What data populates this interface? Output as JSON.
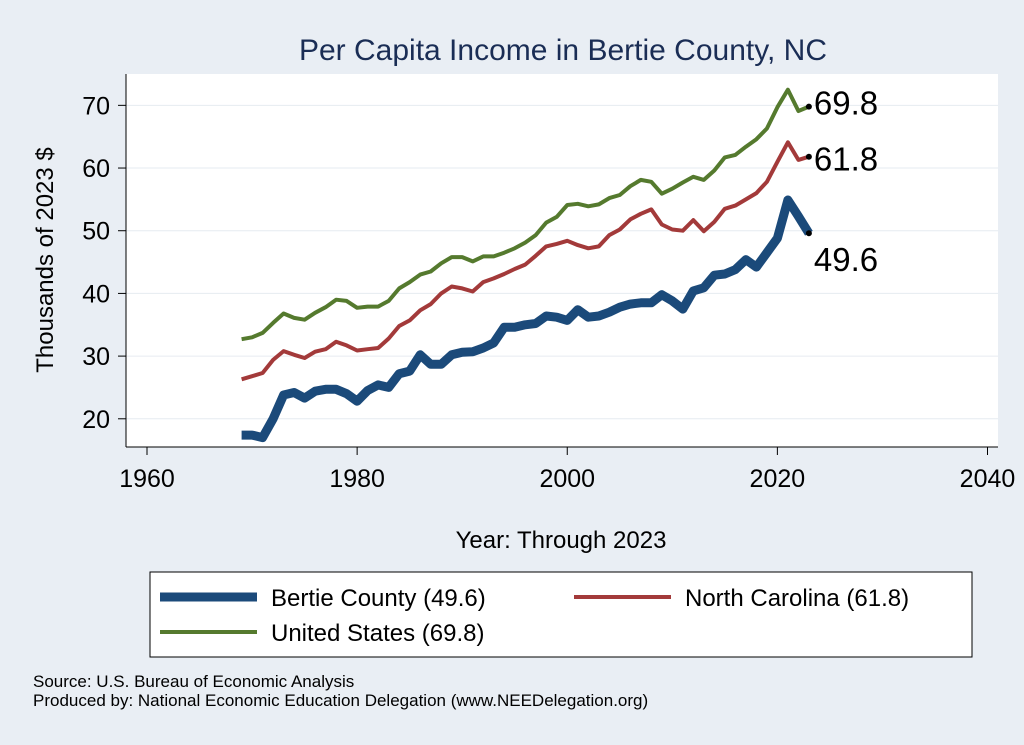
{
  "chart_data": {
    "type": "line",
    "title": "Per Capita Income in Bertie County, NC",
    "xlabel": "Year: Through 2023",
    "ylabel": "Thousands of 2023 $",
    "xlim": [
      1958,
      2041
    ],
    "ylim": [
      15.5,
      75
    ],
    "xticks": [
      1960,
      1980,
      2000,
      2020,
      2040
    ],
    "yticks": [
      20,
      30,
      40,
      50,
      60,
      70
    ],
    "grid": true,
    "legend_position": "bottom",
    "years": [
      1969,
      1970,
      1971,
      1972,
      1973,
      1974,
      1975,
      1976,
      1977,
      1978,
      1979,
      1980,
      1981,
      1982,
      1983,
      1984,
      1985,
      1986,
      1987,
      1988,
      1989,
      1990,
      1991,
      1992,
      1993,
      1994,
      1995,
      1996,
      1997,
      1998,
      1999,
      2000,
      2001,
      2002,
      2003,
      2004,
      2005,
      2006,
      2007,
      2008,
      2009,
      2010,
      2011,
      2012,
      2013,
      2014,
      2015,
      2016,
      2017,
      2018,
      2019,
      2020,
      2021,
      2022,
      2023
    ],
    "series": [
      {
        "name": "Bertie County (49.6)",
        "color": "#1b4a7a",
        "end_label": "49.6",
        "values": [
          17.4,
          17.4,
          17.0,
          20.0,
          23.8,
          24.2,
          23.3,
          24.4,
          24.7,
          24.7,
          24.0,
          22.8,
          24.5,
          25.4,
          25.0,
          27.2,
          27.6,
          30.2,
          28.7,
          28.7,
          30.2,
          30.6,
          30.7,
          31.3,
          32.1,
          34.6,
          34.6,
          35.0,
          35.2,
          36.4,
          36.2,
          35.7,
          37.4,
          36.2,
          36.4,
          37.0,
          37.8,
          38.3,
          38.5,
          38.5,
          39.8,
          38.8,
          37.5,
          40.4,
          40.9,
          42.9,
          43.1,
          43.8,
          45.4,
          44.2,
          46.5,
          48.8,
          54.9,
          52.3,
          49.6
        ]
      },
      {
        "name": "North Carolina (61.8)",
        "color": "#a33a3a",
        "end_label": "61.8",
        "values": [
          26.3,
          26.8,
          27.3,
          29.4,
          30.8,
          30.2,
          29.7,
          30.7,
          31.1,
          32.3,
          31.7,
          30.9,
          31.1,
          31.3,
          32.8,
          34.8,
          35.7,
          37.3,
          38.3,
          40.0,
          41.1,
          40.8,
          40.3,
          41.8,
          42.4,
          43.1,
          43.9,
          44.6,
          46.0,
          47.5,
          47.9,
          48.4,
          47.7,
          47.2,
          47.5,
          49.3,
          50.2,
          51.8,
          52.7,
          53.4,
          51.0,
          50.2,
          50.0,
          51.7,
          49.9,
          51.4,
          53.5,
          54.0,
          55.0,
          56.0,
          57.8,
          61.0,
          64.1,
          61.3,
          61.8
        ]
      },
      {
        "name": "United States (69.8)",
        "color": "#557a2e",
        "end_label": "69.8",
        "values": [
          32.7,
          33.0,
          33.7,
          35.3,
          36.8,
          36.1,
          35.8,
          36.9,
          37.8,
          39.0,
          38.8,
          37.7,
          37.9,
          37.9,
          38.8,
          40.8,
          41.8,
          43.0,
          43.5,
          44.8,
          45.8,
          45.8,
          45.1,
          45.9,
          45.9,
          46.5,
          47.2,
          48.1,
          49.3,
          51.3,
          52.2,
          54.1,
          54.3,
          53.9,
          54.2,
          55.2,
          55.7,
          57.1,
          58.1,
          57.8,
          55.9,
          56.7,
          57.7,
          58.6,
          58.1,
          59.6,
          61.7,
          62.1,
          63.4,
          64.6,
          66.3,
          69.7,
          72.5,
          69.1,
          69.8
        ]
      }
    ]
  },
  "legend": {
    "items": [
      "Bertie County (49.6)",
      "North Carolina (61.8)",
      "United States (69.8)"
    ]
  },
  "source": {
    "line1": "Source: U.S. Bureau of Economic Analysis",
    "line2": "Produced by: National Economic Education Delegation (www.NEEDelegation.org)"
  }
}
